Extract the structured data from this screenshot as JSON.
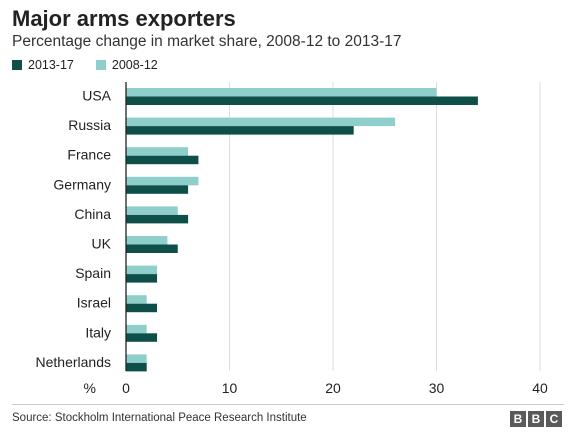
{
  "chart_data": {
    "type": "bar",
    "orientation": "horizontal",
    "title": "Major arms exporters",
    "subtitle": "Percentage change in market share, 2008-12 to 2013-17",
    "xlabel": "%",
    "xlim": [
      0,
      40
    ],
    "xticks": [
      0,
      10,
      20,
      30,
      40
    ],
    "grid": true,
    "legend_position": "top-left",
    "categories": [
      "USA",
      "Russia",
      "France",
      "Germany",
      "China",
      "UK",
      "Spain",
      "Israel",
      "Italy",
      "Netherlands"
    ],
    "series": [
      {
        "name": "2013-17",
        "color": "#0e4f4a",
        "values": [
          34,
          22,
          7,
          6,
          6,
          5,
          3,
          3,
          3,
          2
        ]
      },
      {
        "name": "2008-12",
        "color": "#8ecfcb",
        "values": [
          30,
          26,
          6,
          7,
          5,
          4,
          3,
          2,
          2,
          2
        ]
      }
    ]
  },
  "source": "Source: Stockholm International Peace Research Institute",
  "logo": {
    "letters": [
      "B",
      "B",
      "C"
    ]
  }
}
